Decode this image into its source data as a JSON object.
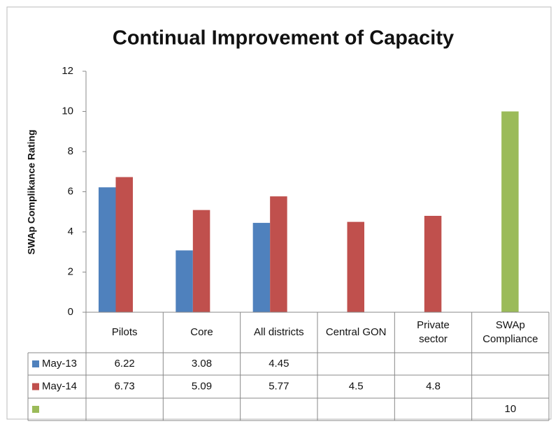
{
  "chart_data": {
    "type": "bar",
    "title": "Continual Improvement of Capacity",
    "y_label": "SWAp Complikance Rating",
    "categories": [
      "Pilots",
      "Core",
      "All districts",
      "Central GON",
      "Private sector",
      "SWAp Compliance"
    ],
    "series": [
      {
        "name": "May-13",
        "color": "#4f81bd",
        "values": [
          6.22,
          3.08,
          4.45,
          null,
          null,
          null
        ]
      },
      {
        "name": "May-14",
        "color": "#c0504d",
        "values": [
          6.73,
          5.09,
          5.77,
          4.5,
          4.8,
          null
        ]
      },
      {
        "name": null,
        "color": "#9bbb59",
        "values": [
          null,
          null,
          null,
          null,
          null,
          10
        ]
      }
    ],
    "ylim": [
      0,
      12
    ],
    "yticks": [
      0,
      2,
      4,
      6,
      8,
      10,
      12
    ],
    "grid": false,
    "data_table": true
  }
}
